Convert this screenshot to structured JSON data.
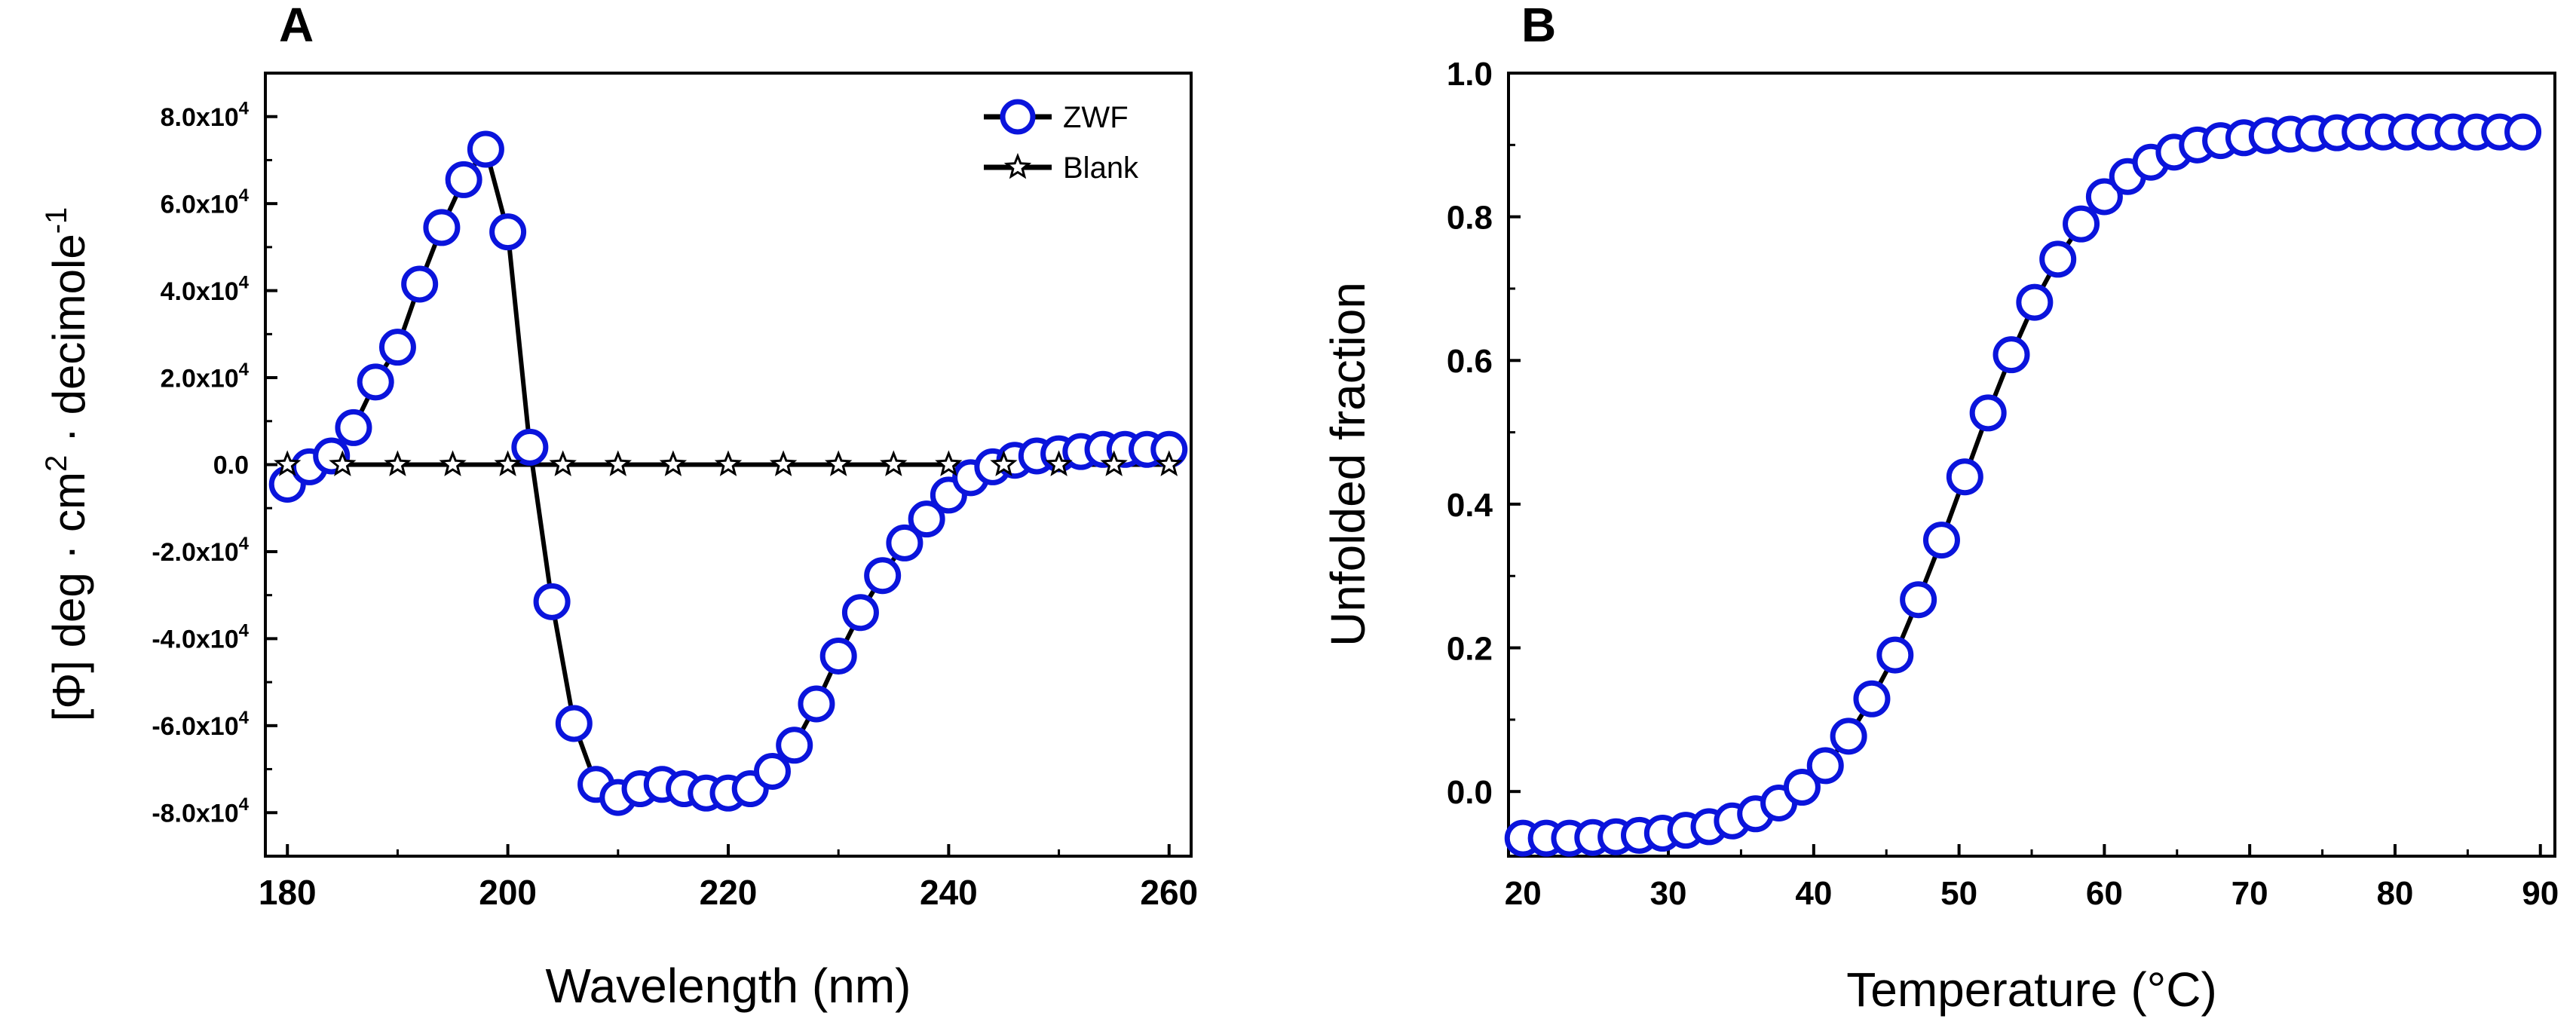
{
  "chart_data": [
    {
      "panel": "A",
      "type": "line",
      "xlabel": "Wavelength (nm)",
      "ylabel": "[Φ]  deg · cm2 · decimole-1",
      "xlim": [
        178,
        262
      ],
      "ylim": [
        -90000,
        90000
      ],
      "xticks": [
        180,
        200,
        220,
        240,
        260
      ],
      "yticks": [
        -80000,
        -60000,
        -40000,
        -20000,
        0,
        20000,
        40000,
        60000,
        80000
      ],
      "ytick_labels": [
        {
          "m": "-8.0x10",
          "e": "4"
        },
        {
          "m": "-6.0x10",
          "e": "4"
        },
        {
          "m": "-4.0x10",
          "e": "4"
        },
        {
          "m": "-2.0x10",
          "e": "4"
        },
        {
          "m": "0.0",
          "e": ""
        },
        {
          "m": "2.0x10",
          "e": "4"
        },
        {
          "m": "4.0x10",
          "e": "4"
        },
        {
          "m": "6.0x10",
          "e": "4"
        },
        {
          "m": "8.0x10",
          "e": "4"
        }
      ],
      "legend_position": "top-right",
      "series": [
        {
          "name": "ZWF",
          "marker": "circle",
          "color": "#0a14dc",
          "x": [
            180,
            182,
            184,
            186,
            188,
            190,
            192,
            194,
            196,
            198,
            200,
            202,
            204,
            206,
            208,
            210,
            212,
            214,
            216,
            218,
            220,
            222,
            224,
            226,
            228,
            230,
            232,
            234,
            236,
            238,
            240,
            242,
            244,
            246,
            248,
            250,
            252,
            254,
            256,
            258,
            260
          ],
          "y": [
            -4500,
            -500,
            2000,
            8500,
            19000,
            27000,
            41500,
            54500,
            65500,
            72500,
            53500,
            4000,
            -31500,
            -59500,
            -73500,
            -76500,
            -74500,
            -73500,
            -74500,
            -75500,
            -75500,
            -74500,
            -70500,
            -64500,
            -55000,
            -44000,
            -34000,
            -25500,
            -18000,
            -12500,
            -7000,
            -3000,
            -500,
            1000,
            2000,
            2500,
            3000,
            3500,
            3500,
            3500,
            3500
          ]
        },
        {
          "name": "Blank",
          "marker": "star",
          "color": "#000000",
          "x": [
            180,
            185,
            190,
            195,
            200,
            205,
            210,
            215,
            220,
            225,
            230,
            235,
            240,
            245,
            250,
            255,
            260
          ],
          "y": [
            0,
            0,
            0,
            0,
            0,
            0,
            0,
            0,
            0,
            0,
            0,
            0,
            0,
            0,
            0,
            0,
            0
          ]
        }
      ]
    },
    {
      "panel": "B",
      "type": "line",
      "xlabel": "Temperature (°C)",
      "ylabel": "Unfolded fraction",
      "xlim": [
        19,
        91
      ],
      "ylim": [
        -0.09,
        1.0
      ],
      "xticks": [
        20,
        30,
        40,
        50,
        60,
        70,
        80,
        90
      ],
      "yticks": [
        0.0,
        0.2,
        0.4,
        0.6,
        0.8,
        1.0
      ],
      "ytick_labels": [
        "0.0",
        "0.2",
        "0.4",
        "0.6",
        "0.8",
        "1.0"
      ],
      "series": [
        {
          "name": "",
          "marker": "circle",
          "color": "#0a14dc",
          "x": [
            20,
            21.6,
            23.2,
            24.8,
            26.4,
            28,
            29.6,
            31.2,
            32.8,
            34.4,
            36,
            37.6,
            39.2,
            40.8,
            42.4,
            44,
            45.6,
            47.2,
            48.8,
            50.4,
            52,
            53.6,
            55.2,
            56.8,
            58.4,
            60,
            61.6,
            63.2,
            64.8,
            66.4,
            68,
            69.6,
            71.2,
            72.8,
            74.4,
            76,
            77.6,
            79.2,
            80.8,
            82.4,
            84,
            85.6,
            87.2,
            88.8
          ],
          "y": [
            -0.065,
            -0.065,
            -0.065,
            -0.064,
            -0.063,
            -0.061,
            -0.058,
            -0.054,
            -0.049,
            -0.041,
            -0.031,
            -0.016,
            0.006,
            0.036,
            0.077,
            0.129,
            0.19,
            0.267,
            0.35,
            0.438,
            0.527,
            0.608,
            0.681,
            0.741,
            0.79,
            0.828,
            0.856,
            0.876,
            0.89,
            0.9,
            0.906,
            0.91,
            0.913,
            0.915,
            0.916,
            0.917,
            0.918,
            0.918,
            0.918,
            0.918,
            0.918,
            0.918,
            0.918,
            0.918
          ]
        }
      ]
    }
  ]
}
